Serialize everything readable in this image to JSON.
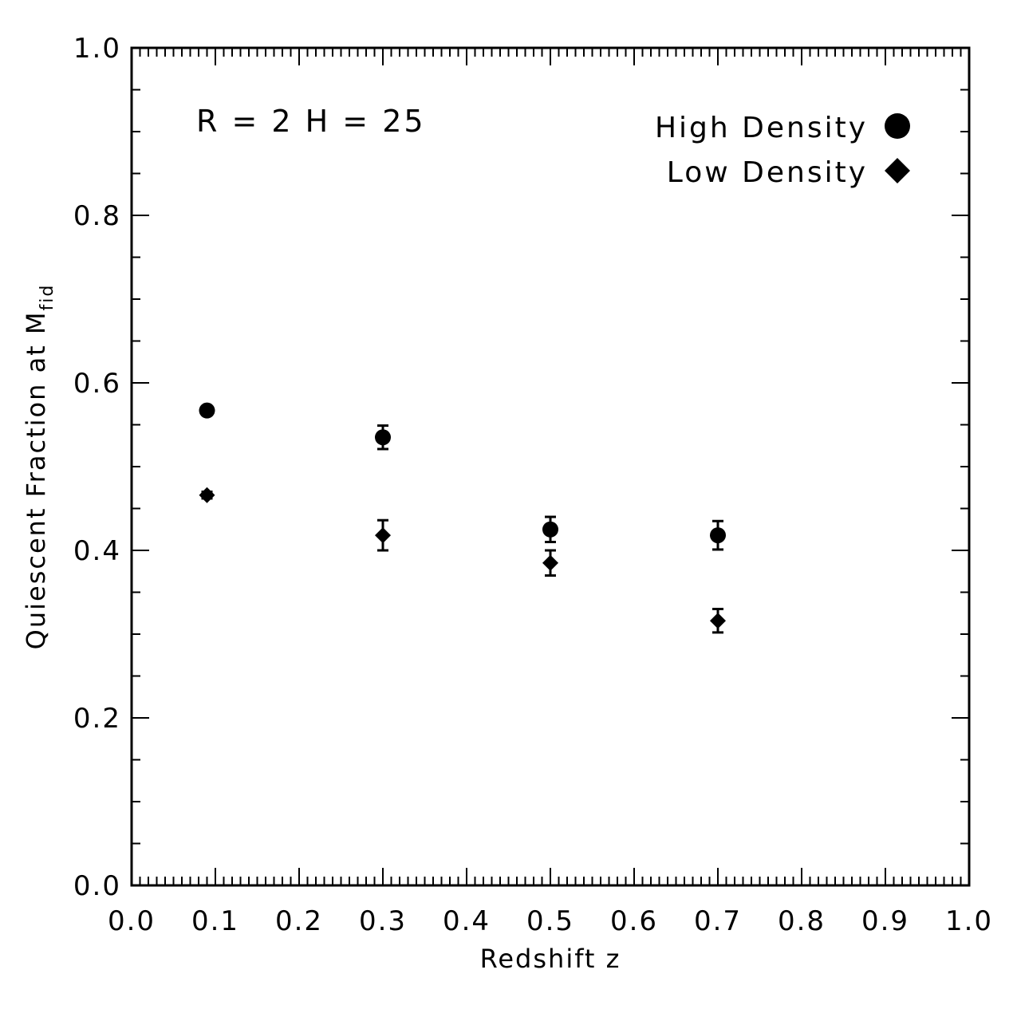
{
  "chart_data": {
    "type": "scatter",
    "xlabel": "Redshift z",
    "ylabel": "Quiescent Fraction at M",
    "ylabel_subscript": "fid",
    "xlim": [
      0.0,
      1.0
    ],
    "ylim": [
      0.0,
      1.0
    ],
    "x_ticks": [
      "0.0",
      "0.1",
      "0.2",
      "0.3",
      "0.4",
      "0.5",
      "0.6",
      "0.7",
      "0.8",
      "0.9",
      "1.0"
    ],
    "y_ticks": [
      "0.0",
      "0.2",
      "0.4",
      "0.6",
      "0.8",
      "1.0"
    ],
    "annotation": "R = 2 H = 25",
    "legend_position": "top-right",
    "grid": false,
    "series": [
      {
        "name": "High Density",
        "marker": "circle",
        "color": "#000000",
        "points": [
          {
            "x": 0.09,
            "y": 0.567,
            "err": 0.0
          },
          {
            "x": 0.3,
            "y": 0.535,
            "err": 0.014
          },
          {
            "x": 0.5,
            "y": 0.425,
            "err": 0.015
          },
          {
            "x": 0.7,
            "y": 0.418,
            "err": 0.017
          }
        ]
      },
      {
        "name": "Low Density",
        "marker": "diamond",
        "color": "#000000",
        "points": [
          {
            "x": 0.09,
            "y": 0.466,
            "err": 0.004
          },
          {
            "x": 0.3,
            "y": 0.418,
            "err": 0.018
          },
          {
            "x": 0.5,
            "y": 0.385,
            "err": 0.015
          },
          {
            "x": 0.7,
            "y": 0.316,
            "err": 0.014
          }
        ]
      }
    ]
  }
}
